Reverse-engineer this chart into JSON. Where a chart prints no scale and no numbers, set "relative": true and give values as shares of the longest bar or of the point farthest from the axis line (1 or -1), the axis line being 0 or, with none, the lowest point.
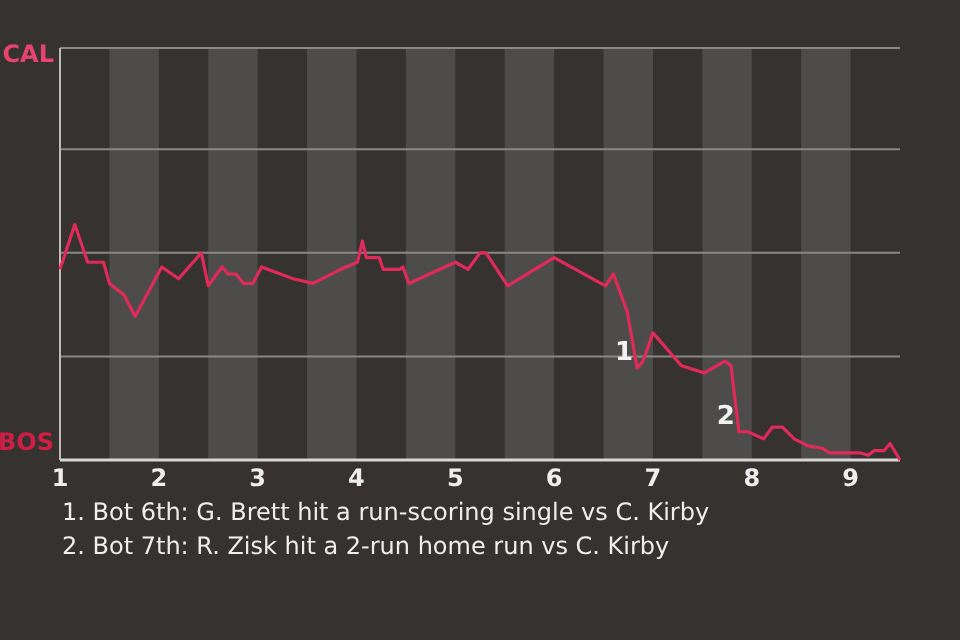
{
  "chart_data": {
    "type": "line",
    "x": [
      1,
      1.15,
      1.28,
      1.44,
      1.5,
      1.65,
      1.76,
      2.03,
      2.2,
      2.43,
      2.5,
      2.64,
      2.7,
      2.78,
      2.86,
      2.95,
      3.04,
      3.36,
      3.56,
      3.84,
      4.01,
      4.06,
      4.1,
      4.23,
      4.27,
      4.44,
      4.47,
      4.53,
      5,
      5.13,
      5.25,
      5.31,
      5.53,
      6,
      6.52,
      6.6,
      6.74,
      6.84,
      6.9,
      7,
      7.29,
      7.52,
      7.73,
      7.79,
      7.87,
      7.96,
      8.12,
      8.21,
      8.31,
      8.43,
      8.57,
      8.71,
      8.79,
      9.1,
      9.18,
      9.24,
      9.34,
      9.4,
      9.5
    ],
    "series": [
      {
        "color": "#e02a58",
        "values": [
          0.81,
          1,
          0.84,
          0.84,
          0.75,
          0.7,
          0.61,
          0.82,
          0.77,
          0.88,
          0.74,
          0.82,
          0.79,
          0.79,
          0.75,
          0.75,
          0.82,
          0.77,
          0.75,
          0.81,
          0.84,
          0.93,
          0.86,
          0.86,
          0.81,
          0.81,
          0.82,
          0.75,
          0.84,
          0.81,
          0.88,
          0.88,
          0.74,
          0.86,
          0.74,
          0.79,
          0.63,
          0.39,
          0.42,
          0.54,
          0.4,
          0.37,
          0.42,
          0.4,
          0.12,
          0.12,
          0.09,
          0.14,
          0.14,
          0.09,
          0.06,
          0.05,
          0.03,
          0.03,
          0.02,
          0.04,
          0.04,
          0.07,
          0
        ]
      }
    ],
    "relative": true,
    "xlim": [
      1,
      9.5
    ],
    "xticks": [
      1,
      2,
      3,
      4,
      5,
      6,
      7,
      8,
      9
    ],
    "ref_lines": [
      {
        "axis": "y",
        "value": 0.44,
        "color": "#8a8886"
      },
      {
        "axis": "y",
        "value": 0.88,
        "color": "#8a8886"
      },
      {
        "axis": "y",
        "value": 1.32,
        "color": "#8a8886"
      },
      {
        "axis": "y",
        "value": 1.75,
        "color": "#8a8886"
      }
    ],
    "bands": [
      {
        "axis": "x",
        "from": 1.5,
        "to": 2,
        "color": "#4e4c4a"
      },
      {
        "axis": "x",
        "from": 2.5,
        "to": 3,
        "color": "#4e4c4a"
      },
      {
        "axis": "x",
        "from": 3.5,
        "to": 4,
        "color": "#4e4c4a"
      },
      {
        "axis": "x",
        "from": 4.5,
        "to": 5,
        "color": "#4e4c4a"
      },
      {
        "axis": "x",
        "from": 5.5,
        "to": 6,
        "color": "#4e4c4a"
      },
      {
        "axis": "x",
        "from": 6.5,
        "to": 7,
        "color": "#4e4c4a"
      },
      {
        "axis": "x",
        "from": 7.5,
        "to": 8,
        "color": "#4e4c4a"
      },
      {
        "axis": "x",
        "from": 8.5,
        "to": 9,
        "color": "#4e4c4a"
      }
    ],
    "annotations": [
      "CAL",
      "BOS",
      "1. Bot 6th: G. Brett hit a run-scoring single vs C. Kirby",
      "2. Bot 7th: R. Zisk hit a 2-run home run vs C. Kirby",
      {
        "text": "1",
        "x": 6.84,
        "y": 0.39
      },
      {
        "text": "2",
        "x": 7.87,
        "y": 0.12
      }
    ]
  }
}
